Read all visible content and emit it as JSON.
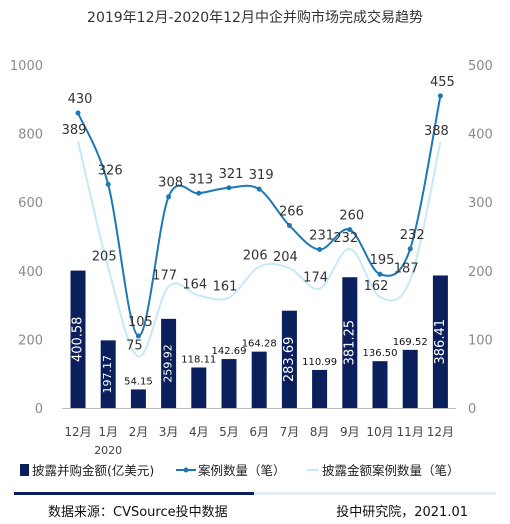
{
  "chart_data": {
    "type": "bar",
    "title": "2019年12月-2020年12月中企并购市场完成交易趋势",
    "categories": [
      "12月",
      "1月",
      "2月",
      "3月",
      "4月",
      "5月",
      "6月",
      "7月",
      "8月",
      "9月",
      "10月",
      "11月",
      "12月"
    ],
    "year_label": "2020",
    "y_left": {
      "ylim": [
        0,
        1000
      ],
      "ticks": [
        "0",
        "200",
        "400",
        "600",
        "800",
        "1000"
      ]
    },
    "y_right": {
      "ylim": [
        0,
        500
      ],
      "ticks": [
        "0",
        "100",
        "200",
        "300",
        "400",
        "500"
      ]
    },
    "series": [
      {
        "name": "披露并购金额(亿美元)",
        "kind": "bar",
        "axis": "left",
        "color": "#0a1f5c",
        "values": [
          400.58,
          197.17,
          54.15,
          259.92,
          118.11,
          142.69,
          164.28,
          283.69,
          110.99,
          381.25,
          136.5,
          169.52,
          386.41
        ],
        "labels": [
          "400.58",
          "197.17",
          "54.15",
          "259.92",
          "118.11",
          "142.69",
          "164.28",
          "283.69",
          "110.99",
          "381.25",
          "136.50",
          "169.52",
          "386.41"
        ]
      },
      {
        "name": "案例数量（笔）",
        "kind": "line",
        "axis": "right",
        "color": "#1f77b4",
        "values": [
          430,
          326,
          105,
          308,
          313,
          321,
          319,
          266,
          231,
          260,
          195,
          232,
          455
        ]
      },
      {
        "name": "披露金额案例数量（笔）",
        "kind": "line",
        "axis": "right",
        "color": "#c6e9f7",
        "values": [
          389,
          205,
          75,
          177,
          164,
          161,
          206,
          204,
          174,
          232,
          162,
          187,
          388
        ]
      }
    ],
    "grid": false,
    "legend": "bottom"
  },
  "footer": {
    "source": "数据来源：CVSource投中数据",
    "org": "投中研究院，2021.01"
  }
}
